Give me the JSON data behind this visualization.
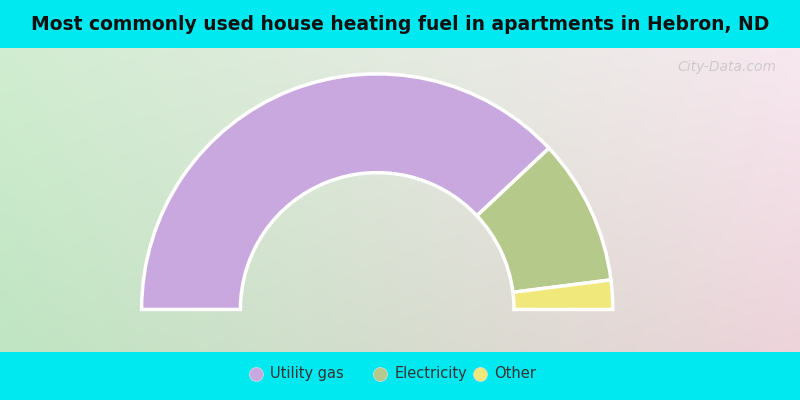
{
  "title": "Most commonly used house heating fuel in apartments in Hebron, ND",
  "title_fontsize": 13.5,
  "segments": [
    {
      "label": "Utility gas",
      "value": 76,
      "color": "#c9a8e0"
    },
    {
      "label": "Electricity",
      "value": 20,
      "color": "#b5c98a"
    },
    {
      "label": "Other",
      "value": 4,
      "color": "#f0e87a"
    }
  ],
  "cyan_bg": "#00e8f0",
  "watermark": "City-Data.com",
  "grad_tl": [
    0.82,
    0.93,
    0.82
  ],
  "grad_tr": [
    0.97,
    0.91,
    0.94
  ],
  "grad_bl": [
    0.75,
    0.9,
    0.76
  ],
  "grad_br": [
    0.93,
    0.83,
    0.86
  ]
}
